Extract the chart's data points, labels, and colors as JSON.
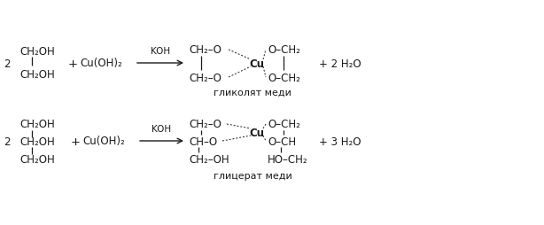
{
  "bg_color": "#ffffff",
  "fig_width": 6.14,
  "fig_height": 2.55,
  "dpi": 100,
  "text_color": "#1a1a1a",
  "line_color": "#1a1a1a",
  "font_size_main": 8.5,
  "font_size_label": 8,
  "font_size_arrow": 7.5,
  "r1y": 178,
  "r2y": 88,
  "label1": "гликолят меди",
  "label2": "глицерат меди",
  "coeff1": "2",
  "coeff2": "2",
  "reactant1_r1_top": "CH₂OH",
  "reactant1_r1_bot": "CH₂OH",
  "reactant1_r2_top": "CH₂OH",
  "reactant1_r2_mid": "CH₂OH",
  "reactant1_r2_bot": "CH₂OH",
  "cu_reagent": "Cu(OH)₂",
  "arrow_label": "KOH",
  "cu_symbol": "Cu",
  "water1": "+ 2 H₂O",
  "water2": "+ 3 H₂O",
  "r1_prod_left_top": "CH₂–O",
  "r1_prod_left_bot": "CH₂–O",
  "r1_prod_right_top": "O–CH₂",
  "r1_prod_right_bot": "O–CH₂",
  "r2_prod_left_top": "CH₂–O",
  "r2_prod_left_mid": "CH–O",
  "r2_prod_left_bot": "CH₂–OH",
  "r2_prod_right_top": "O–CH₂",
  "r2_prod_right_mid": "O–CH",
  "r2_prod_right_bot": "HO–CH₂"
}
